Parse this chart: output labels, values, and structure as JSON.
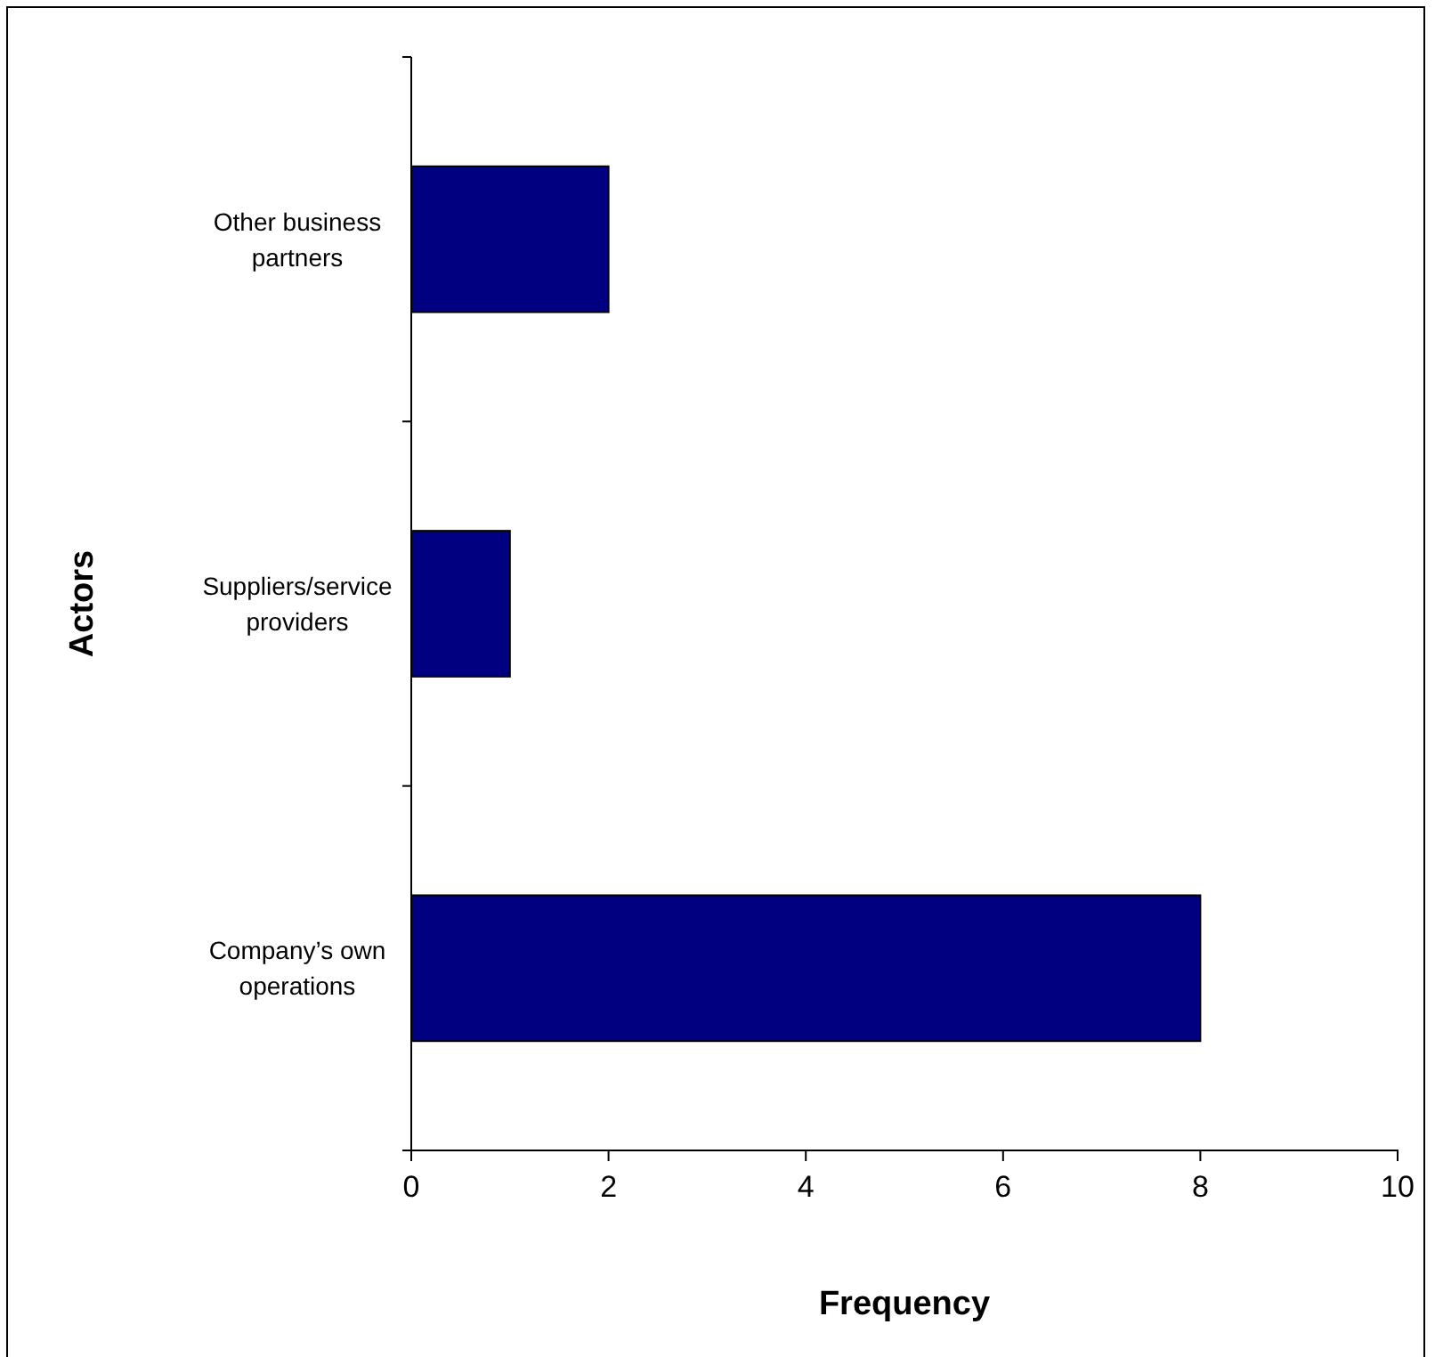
{
  "chart_data": {
    "type": "bar",
    "orientation": "horizontal",
    "categories": [
      "Other business partners",
      "Suppliers/service providers",
      "Company’s own operations"
    ],
    "values": [
      2,
      1,
      8
    ],
    "color": "#000080",
    "xlim": [
      0,
      10
    ],
    "xticks": [
      0,
      2,
      4,
      6,
      8,
      10
    ],
    "xlabel": "Frequency",
    "ylabel": "Actors"
  }
}
